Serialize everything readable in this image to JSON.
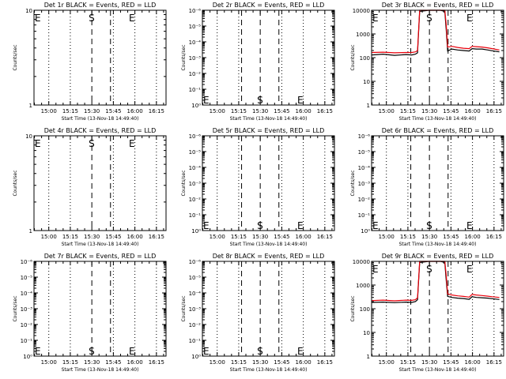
{
  "figure": {
    "background": "#ffffff",
    "time_ticks": [
      "15:00",
      "15:15",
      "15:30",
      "15:45",
      "16:00",
      "16:15"
    ],
    "xlabel": "Start Time (13-Nov-18 14:49:40)",
    "ylabel": "Counts/sec",
    "colors": {
      "events": "#000000",
      "lld": "#e8000b",
      "markers": "#000000",
      "axes": "#000000"
    }
  },
  "chart_data": [
    {
      "type": "line",
      "title": "Det 1r BLACK = Events, RED = LLD",
      "xlabel": "Start Time (13-Nov-18 14:49:40)",
      "ylabel": "Counts/sec",
      "x_unit": "minutes after 14:49:40",
      "ylog": true,
      "ylim": [
        1,
        10
      ],
      "yticks": [
        "1",
        "10"
      ],
      "markers": {
        "E1": 0,
        "S": 40.3,
        "E2": 68.3
      },
      "dashed_times": [
        40.3,
        53.3
      ],
      "dotted_times": [
        10.3,
        25.3,
        55.3,
        70.3,
        85.3
      ],
      "series": []
    },
    {
      "type": "line",
      "title": "Det 2r BLACK = Events, RED = LLD",
      "xlabel": "Start Time (13-Nov-18 14:49:40)",
      "ylabel": "Counts/sec",
      "x_unit": "minutes after 14:49:40",
      "ylog": true,
      "ylim": [
        1,
        1000000
      ],
      "yticks": [
        "10⁰",
        "10⁻¹",
        "10⁻²",
        "10⁻³",
        "10⁻⁴",
        "10⁻⁵",
        "10⁻⁶"
      ],
      "markers": {
        "E1": 0,
        "S": 40.3,
        "E2": 68.3
      },
      "dashed_times": [
        27.3,
        40.3,
        53.3
      ],
      "dotted_times": [
        10.3,
        25.3,
        55.3,
        70.3,
        85.3
      ],
      "series": []
    },
    {
      "type": "line",
      "title": "Det 3r BLACK = Events, RED = LLD",
      "xlabel": "Start Time (13-Nov-18 14:49:40)",
      "ylabel": "Counts/sec",
      "x_unit": "minutes after 14:49:40",
      "ylog": true,
      "ylim": [
        1,
        10000
      ],
      "yticks": [
        "1",
        "10",
        "100",
        "1000",
        "10000"
      ],
      "markers": {
        "E1": 0,
        "S": 40.3,
        "E2": 68.3
      },
      "dashed_times": [
        27.3,
        40.3,
        53.3
      ],
      "dotted_times": [
        10.3,
        25.3,
        55.3,
        70.3,
        85.3
      ],
      "series": [
        {
          "role": "events",
          "x": [
            0,
            8,
            16,
            24,
            28,
            30.5,
            32,
            33.5,
            40,
            48,
            51,
            52,
            53,
            56,
            60,
            64,
            68,
            70,
            73,
            77,
            81,
            84,
            89
          ],
          "y": [
            130,
            140,
            125,
            135,
            130,
            140,
            160,
            9000,
            10000,
            10000,
            9000,
            1500,
            190,
            230,
            210,
            200,
            190,
            240,
            230,
            230,
            210,
            195,
            175
          ]
        },
        {
          "role": "lld",
          "x": [
            0,
            8,
            16,
            24,
            28,
            30.5,
            32,
            33.5,
            40,
            48,
            51,
            52,
            53,
            56,
            60,
            64,
            68,
            70,
            73,
            77,
            81,
            84,
            89
          ],
          "y": [
            165,
            170,
            160,
            165,
            165,
            175,
            200,
            10000,
            10000,
            10000,
            10000,
            2500,
            280,
            300,
            270,
            250,
            240,
            300,
            290,
            280,
            260,
            240,
            210
          ]
        }
      ]
    },
    {
      "type": "line",
      "title": "Det 4r BLACK = Events, RED = LLD",
      "xlabel": "Start Time (13-Nov-18 14:49:40)",
      "ylabel": "Counts/sec",
      "x_unit": "minutes after 14:49:40",
      "ylog": true,
      "ylim": [
        1,
        10
      ],
      "yticks": [
        "1",
        "10"
      ],
      "markers": {
        "E1": 0,
        "S": 40.3,
        "E2": 68.3
      },
      "dashed_times": [
        40.3,
        53.3
      ],
      "dotted_times": [
        10.3,
        25.3,
        55.3,
        70.3,
        85.3
      ],
      "series": []
    },
    {
      "type": "line",
      "title": "Det 5r BLACK = Events, RED = LLD",
      "xlabel": "Start Time (13-Nov-18 14:49:40)",
      "ylabel": "Counts/sec",
      "x_unit": "minutes after 14:49:40",
      "ylog": true,
      "ylim": [
        1,
        1000000
      ],
      "yticks": [
        "10⁰",
        "10⁻¹",
        "10⁻²",
        "10⁻³",
        "10⁻⁴",
        "10⁻⁵",
        "10⁻⁶"
      ],
      "markers": {
        "E1": 0,
        "S": 40.3,
        "E2": 68.3
      },
      "dashed_times": [
        27.3,
        40.3,
        53.3
      ],
      "dotted_times": [
        10.3,
        25.3,
        55.3,
        70.3,
        85.3
      ],
      "series": []
    },
    {
      "type": "line",
      "title": "Det 6r BLACK = Events, RED = LLD",
      "xlabel": "Start Time (13-Nov-18 14:49:40)",
      "ylabel": "Counts/sec",
      "x_unit": "minutes after 14:49:40",
      "ylog": true,
      "ylim": [
        1,
        1000000
      ],
      "yticks": [
        "10⁰",
        "10⁻¹",
        "10⁻²",
        "10⁻³",
        "10⁻⁴",
        "10⁻⁵",
        "10⁻⁶"
      ],
      "markers": {
        "E1": 0,
        "S": 40.3,
        "E2": 68.3
      },
      "dashed_times": [
        27.3,
        40.3,
        53.3
      ],
      "dotted_times": [
        10.3,
        25.3,
        55.3,
        70.3,
        85.3
      ],
      "series": []
    },
    {
      "type": "line",
      "title": "Det 7r BLACK = Events, RED = LLD",
      "xlabel": "Start Time (13-Nov-18 14:49:40)",
      "ylabel": "Counts/sec",
      "x_unit": "minutes after 14:49:40",
      "ylog": true,
      "ylim": [
        1,
        1000000
      ],
      "yticks": [
        "10⁰",
        "10⁻¹",
        "10⁻²",
        "10⁻³",
        "10⁻⁴",
        "10⁻⁵",
        "10⁻⁶"
      ],
      "markers": {
        "E1": 0,
        "S": 40.3,
        "E2": 68.3
      },
      "dashed_times": [
        40.3,
        53.3
      ],
      "dotted_times": [
        10.3,
        25.3,
        55.3,
        70.3,
        85.3
      ],
      "series": []
    },
    {
      "type": "line",
      "title": "Det 8r BLACK = Events, RED = LLD",
      "xlabel": "Start Time (13-Nov-18 14:49:40)",
      "ylabel": "Counts/sec",
      "x_unit": "minutes after 14:49:40",
      "ylog": true,
      "ylim": [
        1,
        1000000
      ],
      "yticks": [
        "10⁰",
        "10⁻¹",
        "10⁻²",
        "10⁻³",
        "10⁻⁴",
        "10⁻⁵",
        "10⁻⁶"
      ],
      "markers": {
        "E1": 0,
        "S": 40.3,
        "E2": 68.3
      },
      "dashed_times": [
        27.3,
        40.3,
        53.3
      ],
      "dotted_times": [
        10.3,
        25.3,
        55.3,
        70.3,
        85.3
      ],
      "series": []
    },
    {
      "type": "line",
      "title": "Det 9r BLACK = Events, RED = LLD",
      "xlabel": "Start Time (13-Nov-18 14:49:40)",
      "ylabel": "Counts/sec",
      "x_unit": "minutes after 14:49:40",
      "ylog": true,
      "ylim": [
        1,
        10000
      ],
      "yticks": [
        "1",
        "10",
        "100",
        "1000",
        "10000"
      ],
      "markers": {
        "E1": 0,
        "S": 40.3,
        "E2": 68.3
      },
      "dashed_times": [
        27.3,
        40.3,
        53.3
      ],
      "dotted_times": [
        10.3,
        25.3,
        55.3,
        70.3,
        85.3
      ],
      "series": [
        {
          "role": "events",
          "x": [
            0,
            8,
            16,
            24,
            28,
            30.5,
            32,
            33.5,
            40,
            48,
            51,
            52,
            53,
            56,
            60,
            64,
            68,
            70,
            73,
            77,
            81,
            84,
            89
          ],
          "y": [
            185,
            190,
            180,
            190,
            185,
            200,
            240,
            9000,
            10000,
            10000,
            9000,
            1600,
            330,
            300,
            280,
            270,
            250,
            320,
            300,
            290,
            280,
            265,
            245
          ]
        },
        {
          "role": "lld",
          "x": [
            0,
            8,
            16,
            24,
            28,
            30.5,
            32,
            33.5,
            40,
            48,
            51,
            52,
            53,
            56,
            60,
            64,
            68,
            70,
            73,
            77,
            81,
            84,
            89
          ],
          "y": [
            220,
            230,
            215,
            230,
            225,
            240,
            290,
            10000,
            10000,
            10000,
            10000,
            2600,
            420,
            380,
            350,
            330,
            310,
            400,
            380,
            360,
            340,
            320,
            300
          ]
        }
      ]
    }
  ]
}
